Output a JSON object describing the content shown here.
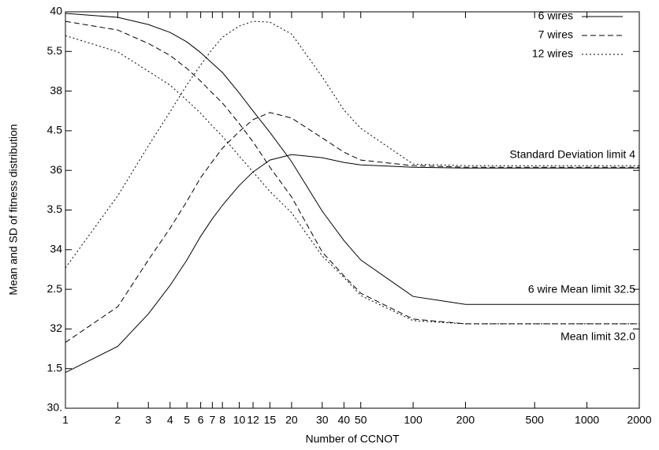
{
  "chart_data": {
    "type": "line",
    "x_label": "Number of CCNOT",
    "y_label": "Mean and SD of fitness distribution",
    "x_log": true,
    "xlim": [
      1,
      2000
    ],
    "xticks": [
      1,
      2,
      3,
      4,
      5,
      6,
      7,
      8,
      10,
      12,
      15,
      20,
      30,
      40,
      50,
      100,
      200,
      500,
      1000,
      2000
    ],
    "ylim": [
      30,
      40
    ],
    "yticks": [
      {
        "value": 30,
        "label": "30."
      },
      32,
      34,
      36,
      38,
      40
    ],
    "y2lim": [
      1,
      6
    ],
    "y2ticks": [
      1.5,
      2.5,
      3.5,
      4.5,
      5.5
    ],
    "legend": "top-right",
    "x": [
      1,
      2,
      3,
      4,
      5,
      6,
      7,
      8,
      10,
      12,
      15,
      20,
      30,
      40,
      50,
      100,
      200,
      500,
      1000,
      2000
    ],
    "series": [
      {
        "name": "6 wires",
        "color": "#000000",
        "dash": "none",
        "values": [
          39.96,
          39.86,
          39.68,
          39.48,
          39.24,
          38.97,
          38.7,
          38.47,
          37.95,
          37.5,
          36.96,
          36.22,
          34.97,
          34.23,
          33.74,
          32.82,
          32.62,
          32.62,
          32.62,
          32.62
        ],
        "sd_values": [
          1.45,
          1.78,
          2.19,
          2.55,
          2.87,
          3.17,
          3.39,
          3.56,
          3.81,
          3.98,
          4.13,
          4.2,
          4.16,
          4.1,
          4.07,
          4.04,
          4.03,
          4.03,
          4.03,
          4.03
        ]
      },
      {
        "name": "7 wires",
        "color": "#000000",
        "dash": "7,4",
        "values": [
          39.76,
          39.54,
          39.2,
          38.9,
          38.57,
          38.25,
          37.95,
          37.7,
          37.18,
          36.72,
          36.08,
          35.33,
          33.94,
          33.34,
          32.9,
          32.25,
          32.13,
          32.13,
          32.13,
          32.13
        ],
        "sd_values": [
          1.83,
          2.28,
          2.87,
          3.27,
          3.61,
          3.91,
          4.11,
          4.28,
          4.49,
          4.64,
          4.73,
          4.66,
          4.41,
          4.23,
          4.13,
          4.06,
          4.04,
          4.04,
          4.04,
          4.04
        ]
      },
      {
        "name": "12 wires",
        "color": "#000000",
        "dash": "2,3",
        "values": [
          39.4,
          38.99,
          38.5,
          38.15,
          37.77,
          37.44,
          37.12,
          36.86,
          36.36,
          35.96,
          35.47,
          34.93,
          33.84,
          33.3,
          32.84,
          32.21,
          32.13,
          32.13,
          32.13,
          32.13
        ],
        "sd_values": [
          2.77,
          3.68,
          4.31,
          4.74,
          5.08,
          5.33,
          5.53,
          5.68,
          5.82,
          5.88,
          5.87,
          5.72,
          5.18,
          4.76,
          4.53,
          4.08,
          4.06,
          4.06,
          4.06,
          4.06
        ]
      }
    ],
    "annotations": [
      "Standard Deviation limit 4",
      "6 wire Mean limit 32.5",
      "Mean limit 32.0"
    ]
  }
}
